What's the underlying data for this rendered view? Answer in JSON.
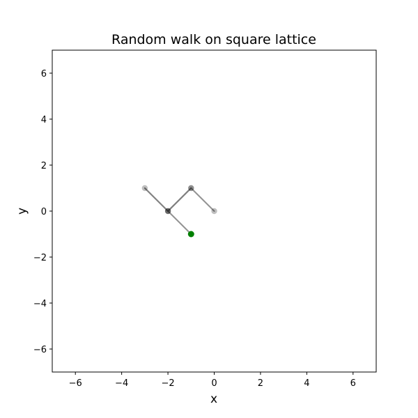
{
  "chart_data": {
    "type": "line",
    "title": "Random walk on square lattice",
    "xlabel": "x",
    "ylabel": "y",
    "xlim": [
      -7,
      7
    ],
    "ylim": [
      -7,
      7
    ],
    "xticks": [
      -6,
      -4,
      -2,
      0,
      2,
      4,
      6
    ],
    "yticks": [
      -6,
      -4,
      -2,
      0,
      2,
      4,
      6
    ],
    "xtick_labels": [
      "−6",
      "−4",
      "−2",
      "0",
      "2",
      "4",
      "6"
    ],
    "ytick_labels": [
      "−6",
      "−4",
      "−2",
      "0",
      "2",
      "4",
      "6"
    ],
    "grid": false,
    "path": {
      "x": [
        0,
        -1,
        -2,
        -3,
        -2,
        -1,
        -2,
        -1
      ],
      "y": [
        0,
        1,
        0,
        1,
        0,
        1,
        0,
        -1
      ],
      "line_color": "#808080",
      "visit_color": "#000000",
      "current_position": {
        "x": -1,
        "y": -1
      },
      "current_color": "#008000"
    }
  }
}
